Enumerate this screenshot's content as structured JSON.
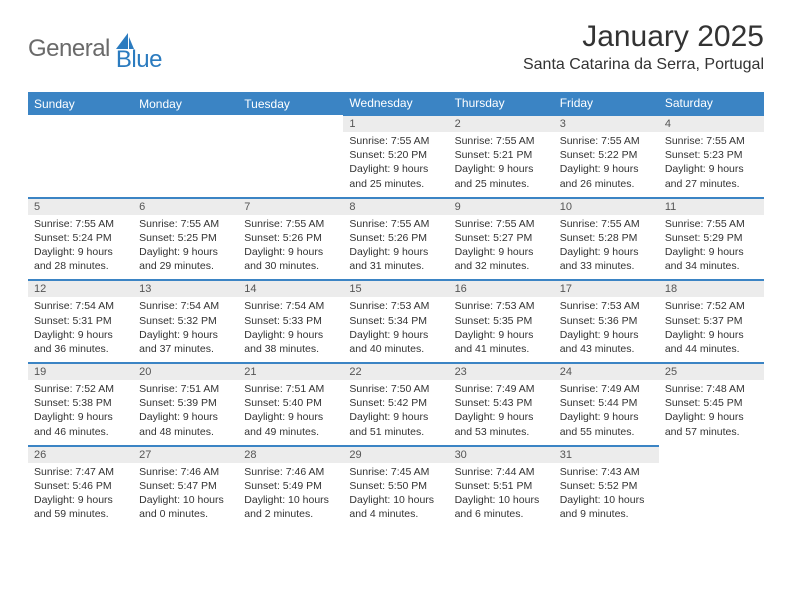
{
  "logo": {
    "text_general": "General",
    "text_blue": "Blue",
    "icon_color": "#2b7bbf"
  },
  "title": {
    "month": "January 2025",
    "location": "Santa Catarina da Serra, Portugal"
  },
  "colors": {
    "header_bg": "#3b84c4",
    "header_text": "#ffffff",
    "day_header_bg": "#ececec",
    "day_header_text": "#555555",
    "cell_border_top": "#3b84c4",
    "body_text": "#333333",
    "page_bg": "#ffffff"
  },
  "fonts": {
    "title_size": 30,
    "location_size": 16,
    "weekday_size": 12,
    "daynum_size": 11,
    "body_size": 10.5
  },
  "weekdays": [
    "Sunday",
    "Monday",
    "Tuesday",
    "Wednesday",
    "Thursday",
    "Friday",
    "Saturday"
  ],
  "weeks": [
    [
      null,
      null,
      null,
      {
        "day": "1",
        "sunrise": "Sunrise: 7:55 AM",
        "sunset": "Sunset: 5:20 PM",
        "daylight1": "Daylight: 9 hours",
        "daylight2": "and 25 minutes."
      },
      {
        "day": "2",
        "sunrise": "Sunrise: 7:55 AM",
        "sunset": "Sunset: 5:21 PM",
        "daylight1": "Daylight: 9 hours",
        "daylight2": "and 25 minutes."
      },
      {
        "day": "3",
        "sunrise": "Sunrise: 7:55 AM",
        "sunset": "Sunset: 5:22 PM",
        "daylight1": "Daylight: 9 hours",
        "daylight2": "and 26 minutes."
      },
      {
        "day": "4",
        "sunrise": "Sunrise: 7:55 AM",
        "sunset": "Sunset: 5:23 PM",
        "daylight1": "Daylight: 9 hours",
        "daylight2": "and 27 minutes."
      }
    ],
    [
      {
        "day": "5",
        "sunrise": "Sunrise: 7:55 AM",
        "sunset": "Sunset: 5:24 PM",
        "daylight1": "Daylight: 9 hours",
        "daylight2": "and 28 minutes."
      },
      {
        "day": "6",
        "sunrise": "Sunrise: 7:55 AM",
        "sunset": "Sunset: 5:25 PM",
        "daylight1": "Daylight: 9 hours",
        "daylight2": "and 29 minutes."
      },
      {
        "day": "7",
        "sunrise": "Sunrise: 7:55 AM",
        "sunset": "Sunset: 5:26 PM",
        "daylight1": "Daylight: 9 hours",
        "daylight2": "and 30 minutes."
      },
      {
        "day": "8",
        "sunrise": "Sunrise: 7:55 AM",
        "sunset": "Sunset: 5:26 PM",
        "daylight1": "Daylight: 9 hours",
        "daylight2": "and 31 minutes."
      },
      {
        "day": "9",
        "sunrise": "Sunrise: 7:55 AM",
        "sunset": "Sunset: 5:27 PM",
        "daylight1": "Daylight: 9 hours",
        "daylight2": "and 32 minutes."
      },
      {
        "day": "10",
        "sunrise": "Sunrise: 7:55 AM",
        "sunset": "Sunset: 5:28 PM",
        "daylight1": "Daylight: 9 hours",
        "daylight2": "and 33 minutes."
      },
      {
        "day": "11",
        "sunrise": "Sunrise: 7:55 AM",
        "sunset": "Sunset: 5:29 PM",
        "daylight1": "Daylight: 9 hours",
        "daylight2": "and 34 minutes."
      }
    ],
    [
      {
        "day": "12",
        "sunrise": "Sunrise: 7:54 AM",
        "sunset": "Sunset: 5:31 PM",
        "daylight1": "Daylight: 9 hours",
        "daylight2": "and 36 minutes."
      },
      {
        "day": "13",
        "sunrise": "Sunrise: 7:54 AM",
        "sunset": "Sunset: 5:32 PM",
        "daylight1": "Daylight: 9 hours",
        "daylight2": "and 37 minutes."
      },
      {
        "day": "14",
        "sunrise": "Sunrise: 7:54 AM",
        "sunset": "Sunset: 5:33 PM",
        "daylight1": "Daylight: 9 hours",
        "daylight2": "and 38 minutes."
      },
      {
        "day": "15",
        "sunrise": "Sunrise: 7:53 AM",
        "sunset": "Sunset: 5:34 PM",
        "daylight1": "Daylight: 9 hours",
        "daylight2": "and 40 minutes."
      },
      {
        "day": "16",
        "sunrise": "Sunrise: 7:53 AM",
        "sunset": "Sunset: 5:35 PM",
        "daylight1": "Daylight: 9 hours",
        "daylight2": "and 41 minutes."
      },
      {
        "day": "17",
        "sunrise": "Sunrise: 7:53 AM",
        "sunset": "Sunset: 5:36 PM",
        "daylight1": "Daylight: 9 hours",
        "daylight2": "and 43 minutes."
      },
      {
        "day": "18",
        "sunrise": "Sunrise: 7:52 AM",
        "sunset": "Sunset: 5:37 PM",
        "daylight1": "Daylight: 9 hours",
        "daylight2": "and 44 minutes."
      }
    ],
    [
      {
        "day": "19",
        "sunrise": "Sunrise: 7:52 AM",
        "sunset": "Sunset: 5:38 PM",
        "daylight1": "Daylight: 9 hours",
        "daylight2": "and 46 minutes."
      },
      {
        "day": "20",
        "sunrise": "Sunrise: 7:51 AM",
        "sunset": "Sunset: 5:39 PM",
        "daylight1": "Daylight: 9 hours",
        "daylight2": "and 48 minutes."
      },
      {
        "day": "21",
        "sunrise": "Sunrise: 7:51 AM",
        "sunset": "Sunset: 5:40 PM",
        "daylight1": "Daylight: 9 hours",
        "daylight2": "and 49 minutes."
      },
      {
        "day": "22",
        "sunrise": "Sunrise: 7:50 AM",
        "sunset": "Sunset: 5:42 PM",
        "daylight1": "Daylight: 9 hours",
        "daylight2": "and 51 minutes."
      },
      {
        "day": "23",
        "sunrise": "Sunrise: 7:49 AM",
        "sunset": "Sunset: 5:43 PM",
        "daylight1": "Daylight: 9 hours",
        "daylight2": "and 53 minutes."
      },
      {
        "day": "24",
        "sunrise": "Sunrise: 7:49 AM",
        "sunset": "Sunset: 5:44 PM",
        "daylight1": "Daylight: 9 hours",
        "daylight2": "and 55 minutes."
      },
      {
        "day": "25",
        "sunrise": "Sunrise: 7:48 AM",
        "sunset": "Sunset: 5:45 PM",
        "daylight1": "Daylight: 9 hours",
        "daylight2": "and 57 minutes."
      }
    ],
    [
      {
        "day": "26",
        "sunrise": "Sunrise: 7:47 AM",
        "sunset": "Sunset: 5:46 PM",
        "daylight1": "Daylight: 9 hours",
        "daylight2": "and 59 minutes."
      },
      {
        "day": "27",
        "sunrise": "Sunrise: 7:46 AM",
        "sunset": "Sunset: 5:47 PM",
        "daylight1": "Daylight: 10 hours",
        "daylight2": "and 0 minutes."
      },
      {
        "day": "28",
        "sunrise": "Sunrise: 7:46 AM",
        "sunset": "Sunset: 5:49 PM",
        "daylight1": "Daylight: 10 hours",
        "daylight2": "and 2 minutes."
      },
      {
        "day": "29",
        "sunrise": "Sunrise: 7:45 AM",
        "sunset": "Sunset: 5:50 PM",
        "daylight1": "Daylight: 10 hours",
        "daylight2": "and 4 minutes."
      },
      {
        "day": "30",
        "sunrise": "Sunrise: 7:44 AM",
        "sunset": "Sunset: 5:51 PM",
        "daylight1": "Daylight: 10 hours",
        "daylight2": "and 6 minutes."
      },
      {
        "day": "31",
        "sunrise": "Sunrise: 7:43 AM",
        "sunset": "Sunset: 5:52 PM",
        "daylight1": "Daylight: 10 hours",
        "daylight2": "and 9 minutes."
      },
      null
    ]
  ]
}
